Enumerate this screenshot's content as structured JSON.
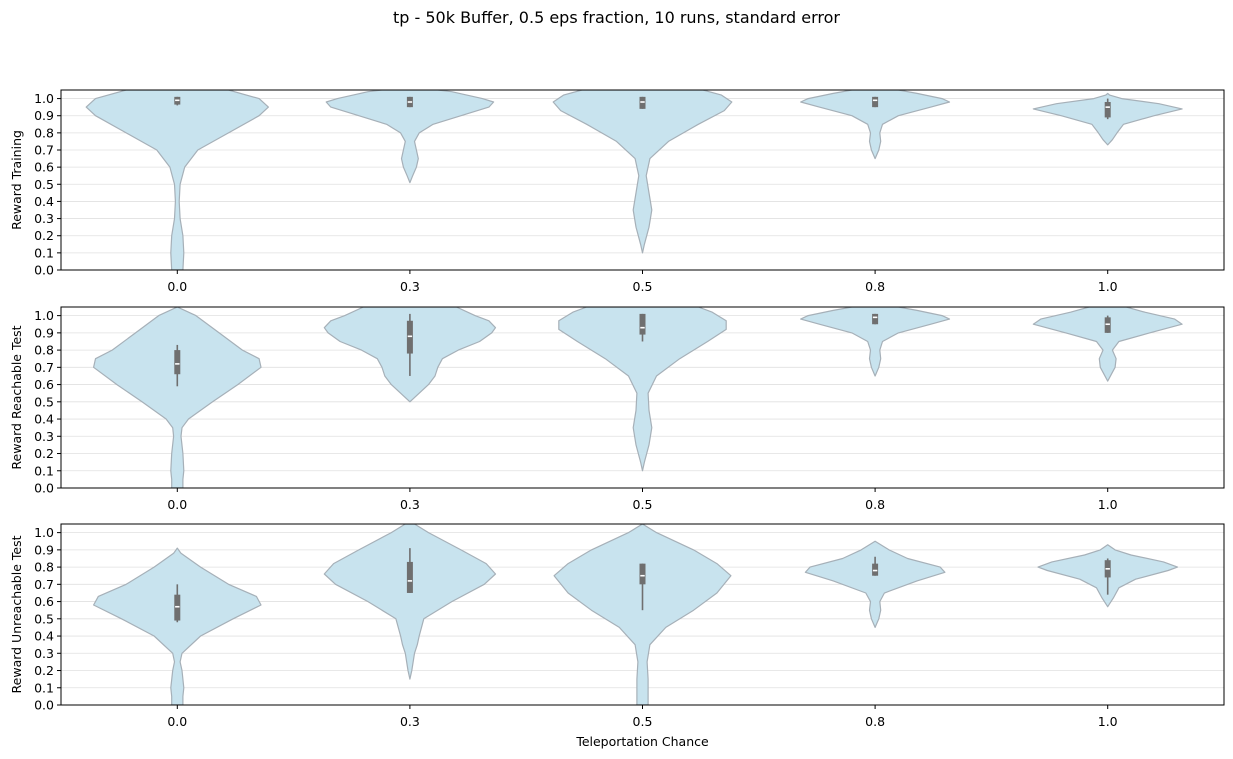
{
  "title": "tp - 50k Buffer, 0.5 eps fraction, 10 runs, standard error",
  "colors": {
    "violin_fill": "#c8e3ee",
    "violin_edge": "#a6b0b8",
    "box": "#6f6f6f",
    "median": "#ffffff",
    "grid": "#e0e0e0"
  },
  "chart_data": [
    {
      "type": "violin",
      "ylabel": "Reward Training",
      "xlabel": "",
      "categories": [
        "0.0",
        "0.3",
        "0.5",
        "0.8",
        "1.0"
      ],
      "ylim": [
        0,
        1.05
      ],
      "yticks": [
        0.0,
        0.1,
        0.2,
        0.3,
        0.4,
        0.5,
        0.6,
        0.7,
        0.8,
        0.9,
        1.0
      ],
      "grid": true,
      "violins": [
        {
          "profile": [
            [
              0.0,
              0.06
            ],
            [
              0.1,
              0.07
            ],
            [
              0.2,
              0.06
            ],
            [
              0.3,
              0.03
            ],
            [
              0.4,
              0.02
            ],
            [
              0.5,
              0.03
            ],
            [
              0.6,
              0.08
            ],
            [
              0.7,
              0.22
            ],
            [
              0.8,
              0.55
            ],
            [
              0.9,
              0.88
            ],
            [
              0.95,
              0.98
            ],
            [
              1.0,
              0.88
            ],
            [
              1.05,
              0.55
            ]
          ],
          "q1": 0.965,
          "median": 0.99,
          "q3": 1.01,
          "whisker_low": 0.96,
          "whisker_high": 1.01
        },
        {
          "profile": [
            [
              0.51,
              0.0
            ],
            [
              0.55,
              0.03
            ],
            [
              0.6,
              0.07
            ],
            [
              0.65,
              0.09
            ],
            [
              0.7,
              0.07
            ],
            [
              0.75,
              0.05
            ],
            [
              0.8,
              0.1
            ],
            [
              0.85,
              0.25
            ],
            [
              0.9,
              0.55
            ],
            [
              0.95,
              0.85
            ],
            [
              0.98,
              0.9
            ],
            [
              1.0,
              0.78
            ],
            [
              1.04,
              0.45
            ],
            [
              1.05,
              0.3
            ]
          ],
          "q1": 0.95,
          "median": 0.98,
          "q3": 1.01,
          "whisker_low": 0.95,
          "whisker_high": 1.01
        },
        {
          "profile": [
            [
              0.1,
              0.0
            ],
            [
              0.15,
              0.02
            ],
            [
              0.25,
              0.07
            ],
            [
              0.35,
              0.1
            ],
            [
              0.45,
              0.07
            ],
            [
              0.55,
              0.04
            ],
            [
              0.65,
              0.08
            ],
            [
              0.75,
              0.28
            ],
            [
              0.85,
              0.6
            ],
            [
              0.93,
              0.88
            ],
            [
              0.98,
              0.96
            ],
            [
              1.02,
              0.85
            ],
            [
              1.05,
              0.65
            ]
          ],
          "q1": 0.94,
          "median": 0.98,
          "q3": 1.01,
          "whisker_low": 0.94,
          "whisker_high": 1.01
        },
        {
          "profile": [
            [
              0.65,
              0.0
            ],
            [
              0.7,
              0.04
            ],
            [
              0.75,
              0.06
            ],
            [
              0.8,
              0.05
            ],
            [
              0.85,
              0.08
            ],
            [
              0.9,
              0.25
            ],
            [
              0.95,
              0.6
            ],
            [
              0.98,
              0.8
            ],
            [
              1.0,
              0.72
            ],
            [
              1.03,
              0.45
            ],
            [
              1.05,
              0.25
            ]
          ],
          "q1": 0.95,
          "median": 0.99,
          "q3": 1.01,
          "whisker_low": 0.95,
          "whisker_high": 1.01
        },
        {
          "profile": [
            [
              0.73,
              0.0
            ],
            [
              0.76,
              0.05
            ],
            [
              0.8,
              0.1
            ],
            [
              0.85,
              0.17
            ],
            [
              0.9,
              0.5
            ],
            [
              0.94,
              0.8
            ],
            [
              0.97,
              0.55
            ],
            [
              1.0,
              0.15
            ],
            [
              1.02,
              0.02
            ],
            [
              1.03,
              0.0
            ]
          ],
          "q1": 0.89,
          "median": 0.95,
          "q3": 0.98,
          "whisker_low": 0.88,
          "whisker_high": 1.0
        }
      ]
    },
    {
      "type": "violin",
      "ylabel": "Reward Reachable Test",
      "xlabel": "",
      "categories": [
        "0.0",
        "0.3",
        "0.5",
        "0.8",
        "1.0"
      ],
      "ylim": [
        0,
        1.05
      ],
      "yticks": [
        0.0,
        0.1,
        0.2,
        0.3,
        0.4,
        0.5,
        0.6,
        0.7,
        0.8,
        0.9,
        1.0
      ],
      "grid": true,
      "violins": [
        {
          "profile": [
            [
              0.0,
              0.06
            ],
            [
              0.05,
              0.06
            ],
            [
              0.1,
              0.07
            ],
            [
              0.2,
              0.06
            ],
            [
              0.3,
              0.04
            ],
            [
              0.35,
              0.05
            ],
            [
              0.4,
              0.12
            ],
            [
              0.5,
              0.38
            ],
            [
              0.6,
              0.65
            ],
            [
              0.7,
              0.9
            ],
            [
              0.75,
              0.88
            ],
            [
              0.8,
              0.7
            ],
            [
              0.9,
              0.45
            ],
            [
              1.0,
              0.2
            ],
            [
              1.05,
              0.0
            ]
          ],
          "q1": 0.66,
          "median": 0.72,
          "q3": 0.8,
          "whisker_low": 0.59,
          "whisker_high": 0.83
        },
        {
          "profile": [
            [
              0.5,
              0.0
            ],
            [
              0.55,
              0.1
            ],
            [
              0.6,
              0.2
            ],
            [
              0.65,
              0.27
            ],
            [
              0.7,
              0.3
            ],
            [
              0.75,
              0.35
            ],
            [
              0.8,
              0.52
            ],
            [
              0.85,
              0.75
            ],
            [
              0.9,
              0.88
            ],
            [
              0.93,
              0.92
            ],
            [
              0.97,
              0.85
            ],
            [
              1.0,
              0.7
            ],
            [
              1.05,
              0.5
            ]
          ],
          "q1": 0.78,
          "median": 0.88,
          "q3": 0.97,
          "whisker_low": 0.65,
          "whisker_high": 1.01
        },
        {
          "profile": [
            [
              0.1,
              0.0
            ],
            [
              0.15,
              0.02
            ],
            [
              0.25,
              0.07
            ],
            [
              0.35,
              0.1
            ],
            [
              0.45,
              0.07
            ],
            [
              0.55,
              0.06
            ],
            [
              0.65,
              0.15
            ],
            [
              0.75,
              0.4
            ],
            [
              0.85,
              0.7
            ],
            [
              0.92,
              0.9
            ],
            [
              0.97,
              0.9
            ],
            [
              1.02,
              0.75
            ],
            [
              1.05,
              0.6
            ]
          ],
          "q1": 0.89,
          "median": 0.93,
          "q3": 1.01,
          "whisker_low": 0.85,
          "whisker_high": 1.01
        },
        {
          "profile": [
            [
              0.65,
              0.0
            ],
            [
              0.7,
              0.04
            ],
            [
              0.75,
              0.06
            ],
            [
              0.8,
              0.05
            ],
            [
              0.85,
              0.08
            ],
            [
              0.9,
              0.25
            ],
            [
              0.95,
              0.6
            ],
            [
              0.98,
              0.8
            ],
            [
              1.0,
              0.72
            ],
            [
              1.03,
              0.45
            ],
            [
              1.05,
              0.25
            ]
          ],
          "q1": 0.95,
          "median": 0.99,
          "q3": 1.01,
          "whisker_low": 0.95,
          "whisker_high": 1.01
        },
        {
          "profile": [
            [
              0.62,
              0.0
            ],
            [
              0.66,
              0.04
            ],
            [
              0.7,
              0.08
            ],
            [
              0.75,
              0.09
            ],
            [
              0.8,
              0.05
            ],
            [
              0.85,
              0.12
            ],
            [
              0.9,
              0.45
            ],
            [
              0.95,
              0.8
            ],
            [
              0.98,
              0.72
            ],
            [
              1.02,
              0.4
            ],
            [
              1.05,
              0.2
            ]
          ],
          "q1": 0.9,
          "median": 0.95,
          "q3": 0.99,
          "whisker_low": 0.9,
          "whisker_high": 1.0
        }
      ]
    },
    {
      "type": "violin",
      "ylabel": "Reward Unreachable Test",
      "xlabel": "Teleportation Chance",
      "categories": [
        "0.0",
        "0.3",
        "0.5",
        "0.8",
        "1.0"
      ],
      "ylim": [
        0,
        1.05
      ],
      "yticks": [
        0.0,
        0.1,
        0.2,
        0.3,
        0.4,
        0.5,
        0.6,
        0.7,
        0.8,
        0.9,
        1.0
      ],
      "grid": true,
      "violins": [
        {
          "profile": [
            [
              0.0,
              0.06
            ],
            [
              0.05,
              0.06
            ],
            [
              0.1,
              0.07
            ],
            [
              0.2,
              0.05
            ],
            [
              0.25,
              0.03
            ],
            [
              0.3,
              0.05
            ],
            [
              0.4,
              0.25
            ],
            [
              0.5,
              0.6
            ],
            [
              0.58,
              0.9
            ],
            [
              0.63,
              0.85
            ],
            [
              0.7,
              0.55
            ],
            [
              0.8,
              0.25
            ],
            [
              0.88,
              0.04
            ],
            [
              0.91,
              0.0
            ]
          ],
          "q1": 0.49,
          "median": 0.57,
          "q3": 0.64,
          "whisker_low": 0.48,
          "whisker_high": 0.7
        },
        {
          "profile": [
            [
              0.15,
              0.0
            ],
            [
              0.2,
              0.02
            ],
            [
              0.3,
              0.05
            ],
            [
              0.35,
              0.08
            ],
            [
              0.4,
              0.1
            ],
            [
              0.5,
              0.15
            ],
            [
              0.6,
              0.45
            ],
            [
              0.7,
              0.8
            ],
            [
              0.76,
              0.92
            ],
            [
              0.82,
              0.82
            ],
            [
              0.9,
              0.55
            ],
            [
              1.0,
              0.2
            ],
            [
              1.05,
              0.05
            ]
          ],
          "q1": 0.65,
          "median": 0.72,
          "q3": 0.83,
          "whisker_low": 0.65,
          "whisker_high": 0.91
        },
        {
          "profile": [
            [
              0.0,
              0.06
            ],
            [
              0.05,
              0.06
            ],
            [
              0.15,
              0.06
            ],
            [
              0.25,
              0.05
            ],
            [
              0.35,
              0.08
            ],
            [
              0.45,
              0.25
            ],
            [
              0.55,
              0.55
            ],
            [
              0.65,
              0.8
            ],
            [
              0.75,
              0.95
            ],
            [
              0.82,
              0.8
            ],
            [
              0.9,
              0.55
            ],
            [
              1.0,
              0.15
            ],
            [
              1.05,
              0.0
            ]
          ],
          "q1": 0.7,
          "median": 0.75,
          "q3": 0.82,
          "whisker_low": 0.55,
          "whisker_high": 0.82
        },
        {
          "profile": [
            [
              0.45,
              0.0
            ],
            [
              0.5,
              0.04
            ],
            [
              0.55,
              0.06
            ],
            [
              0.6,
              0.05
            ],
            [
              0.65,
              0.1
            ],
            [
              0.72,
              0.45
            ],
            [
              0.77,
              0.75
            ],
            [
              0.8,
              0.7
            ],
            [
              0.85,
              0.35
            ],
            [
              0.9,
              0.15
            ],
            [
              0.95,
              0.0
            ]
          ],
          "q1": 0.75,
          "median": 0.78,
          "q3": 0.82,
          "whisker_low": 0.75,
          "whisker_high": 0.86
        },
        {
          "profile": [
            [
              0.57,
              0.0
            ],
            [
              0.62,
              0.06
            ],
            [
              0.68,
              0.12
            ],
            [
              0.73,
              0.3
            ],
            [
              0.78,
              0.65
            ],
            [
              0.8,
              0.75
            ],
            [
              0.83,
              0.6
            ],
            [
              0.87,
              0.25
            ],
            [
              0.9,
              0.08
            ],
            [
              0.93,
              0.0
            ]
          ],
          "q1": 0.74,
          "median": 0.79,
          "q3": 0.84,
          "whisker_low": 0.64,
          "whisker_high": 0.85
        }
      ]
    }
  ]
}
